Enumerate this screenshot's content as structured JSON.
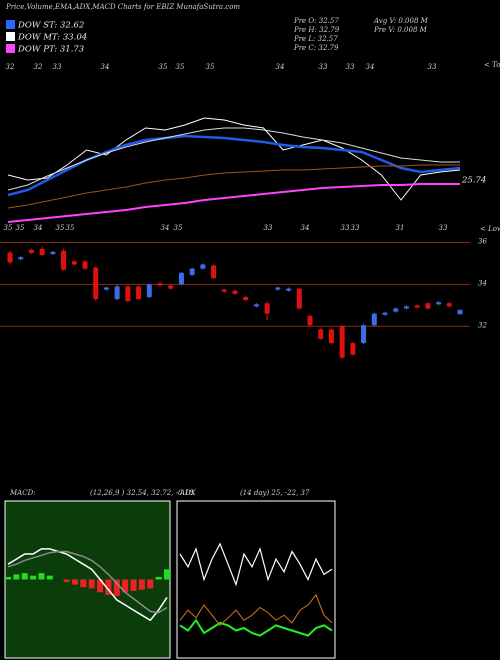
{
  "chart_data": [
    {
      "type": "line",
      "title": "Price,Volume,EMA,ADX,MACD Charts for EBIZ MunafaSutra.com",
      "dow_labels": [
        "DOW ST: 32.62",
        "DOW MT: 33.04",
        "DOW PT: 31.73"
      ],
      "legend_colors": [
        "#2a66ff",
        "#ffffff",
        "#ff44ff"
      ],
      "stats": [
        "Pre  O: 32.57",
        "Pre  H: 32.79",
        "Pre  L: 32.57",
        "Pre  C: 32.79",
        "Avg V: 0.008  M",
        "Pre  V: 0.008 M"
      ],
      "top_labels": [
        "32",
        "32",
        "33",
        "34",
        "35",
        "35",
        "35",
        "34",
        "33",
        "33",
        "34",
        "33"
      ],
      "tops_label": "< Tops",
      "low_labels": [
        "35",
        "35",
        "34",
        "35",
        "35",
        "34",
        "35",
        "33",
        "34",
        "33",
        "33",
        "31",
        "33"
      ],
      "lows_label": "< Lows",
      "annotation": "25.74",
      "ylim": [
        22,
        38
      ],
      "series": [
        {
          "color": "#ffffff",
          "values": [
            26.7,
            26.2,
            26.4,
            27.7,
            29.2,
            28.7,
            30.2,
            31.4,
            31.2,
            31.7,
            32.4,
            32.2,
            31.7,
            31.4,
            29.2,
            29.7,
            30.2,
            29.4,
            28.2,
            26.7,
            24.2,
            26.7,
            27.0,
            27.2
          ]
        },
        {
          "color": "#1f5ae8",
          "values": [
            24.7,
            25.2,
            26.2,
            27.2,
            28.2,
            29.0,
            29.7,
            30.2,
            30.4,
            30.6,
            30.5,
            30.4,
            30.2,
            30.0,
            29.7,
            29.5,
            29.4,
            29.2,
            29.0,
            28.2,
            27.4,
            27.0,
            27.2,
            27.4
          ]
        },
        {
          "color": "#dddddd",
          "values": [
            25.2,
            25.7,
            26.6,
            27.4,
            28.2,
            28.9,
            29.5,
            30.0,
            30.4,
            30.8,
            31.2,
            31.4,
            31.4,
            31.2,
            30.9,
            30.5,
            30.2,
            29.9,
            29.4,
            28.9,
            28.4,
            28.2,
            28.0,
            28.0
          ]
        },
        {
          "color": "#a0521e",
          "values": [
            23.4,
            23.7,
            24.1,
            24.5,
            24.9,
            25.2,
            25.5,
            25.9,
            26.2,
            26.4,
            26.7,
            26.9,
            27.0,
            27.1,
            27.2,
            27.2,
            27.3,
            27.4,
            27.5,
            27.6,
            27.6,
            27.7,
            27.7,
            27.7
          ]
        },
        {
          "color": "#ff44ff",
          "values": [
            22.0,
            22.2,
            22.4,
            22.6,
            22.8,
            23.0,
            23.2,
            23.5,
            23.7,
            23.9,
            24.2,
            24.4,
            24.6,
            24.8,
            25.0,
            25.2,
            25.4,
            25.5,
            25.6,
            25.7,
            25.7,
            25.8,
            25.8,
            25.8
          ]
        }
      ]
    },
    {
      "type": "candlestick",
      "ylim": [
        30.2,
        36.5
      ],
      "yticks": [
        36,
        34,
        32
      ],
      "grid_color": "#8b2a0a",
      "up_color": "#3a6ee8",
      "down_color": "#e01010",
      "open": [
        35.52,
        35.2,
        35.65,
        35.7,
        35.45,
        35.6,
        35.1,
        35.1,
        34.8,
        33.75,
        33.3,
        33.9,
        33.9,
        33.4,
        34.05,
        33.95,
        34.0,
        34.45,
        34.75,
        34.9,
        33.75,
        33.7,
        33.4,
        32.95,
        33.1,
        33.75,
        33.7,
        33.8,
        32.5,
        31.85,
        31.85,
        32.0,
        31.2,
        31.2,
        32.05,
        32.55,
        32.7,
        32.85,
        33.0,
        33.1,
        33.05,
        33.1,
        32.57
      ],
      "high": [
        35.6,
        35.35,
        35.7,
        35.8,
        35.6,
        35.7,
        35.15,
        35.15,
        34.85,
        33.9,
        34.0,
        33.95,
        33.95,
        34.05,
        34.1,
        34.0,
        34.6,
        34.8,
        35.0,
        34.95,
        33.8,
        33.75,
        33.45,
        33.1,
        33.2,
        33.9,
        33.85,
        33.85,
        32.55,
        31.9,
        31.9,
        32.05,
        31.25,
        32.1,
        32.65,
        32.7,
        32.9,
        33.0,
        33.05,
        33.15,
        33.2,
        33.15,
        32.79
      ],
      "low": [
        34.95,
        35.15,
        35.45,
        35.35,
        35.4,
        34.65,
        34.9,
        34.7,
        33.2,
        33.7,
        33.25,
        33.15,
        33.25,
        33.35,
        33.9,
        33.75,
        33.95,
        34.4,
        34.7,
        34.25,
        33.6,
        33.5,
        33.2,
        32.9,
        32.3,
        33.7,
        33.65,
        32.8,
        32.0,
        31.35,
        31.15,
        30.45,
        30.6,
        31.15,
        32.0,
        32.5,
        32.65,
        32.8,
        32.85,
        32.8,
        33.0,
        32.9,
        32.57
      ],
      "close": [
        35.05,
        35.3,
        35.5,
        35.4,
        35.55,
        34.7,
        34.95,
        34.75,
        33.3,
        33.85,
        33.9,
        33.2,
        33.3,
        34.0,
        33.95,
        33.8,
        34.55,
        34.75,
        34.95,
        34.3,
        33.65,
        33.55,
        33.25,
        33.05,
        32.6,
        33.85,
        33.8,
        32.85,
        32.05,
        31.4,
        31.2,
        30.5,
        30.65,
        32.05,
        32.6,
        32.65,
        32.85,
        32.95,
        32.9,
        32.85,
        33.15,
        32.95,
        32.79
      ]
    },
    {
      "type": "macd",
      "title": "MACD:",
      "subtitle": "(12,26,9 ) 32.54, 32.72, -0.18",
      "ylim": [
        -0.6,
        0.6
      ],
      "background": "#0b3d0b",
      "up_color": "#22dd22",
      "down_color": "#ee2222",
      "series": [
        {
          "color": "#ffffff",
          "values": [
            0.12,
            0.16,
            0.2,
            0.2,
            0.24,
            0.24,
            0.22,
            0.2,
            0.16,
            0.12,
            0.08,
            0,
            -0.08,
            -0.16,
            -0.2,
            -0.24,
            -0.28,
            -0.32,
            -0.24,
            -0.14
          ]
        },
        {
          "color": "#8a8a8a",
          "values": [
            0.1,
            0.12,
            0.15,
            0.17,
            0.19,
            0.21,
            0.22,
            0.22,
            0.2,
            0.18,
            0.15,
            0.1,
            0.04,
            -0.03,
            -0.1,
            -0.15,
            -0.2,
            -0.25,
            -0.26,
            -0.22
          ]
        }
      ],
      "histogram": [
        0.02,
        0.04,
        0.05,
        0.03,
        0.05,
        0.03,
        0,
        -0.02,
        -0.04,
        -0.06,
        -0.07,
        -0.1,
        -0.12,
        -0.13,
        -0.1,
        -0.09,
        -0.08,
        -0.07,
        0.02,
        0.08
      ]
    },
    {
      "type": "line",
      "title": "ADX",
      "subtitle": "(14 day) 25, -22, 37",
      "ylim": [
        0,
        60
      ],
      "series": [
        {
          "color": "#ffffff",
          "values": [
            40,
            35,
            42,
            30,
            38,
            44,
            36,
            28,
            40,
            35,
            42,
            30,
            38,
            33,
            41,
            36,
            30,
            38,
            32,
            34
          ]
        },
        {
          "color": "#22ee22",
          "values": [
            12,
            10,
            14,
            9,
            11,
            13,
            12,
            10,
            11,
            9,
            8,
            10,
            12,
            11,
            10,
            9,
            8,
            11,
            12,
            10
          ]
        },
        {
          "color": "#d2761e",
          "values": [
            14,
            18,
            15,
            20,
            16,
            12,
            15,
            18,
            14,
            16,
            19,
            17,
            14,
            16,
            13,
            18,
            20,
            24,
            16,
            13
          ]
        }
      ]
    }
  ]
}
